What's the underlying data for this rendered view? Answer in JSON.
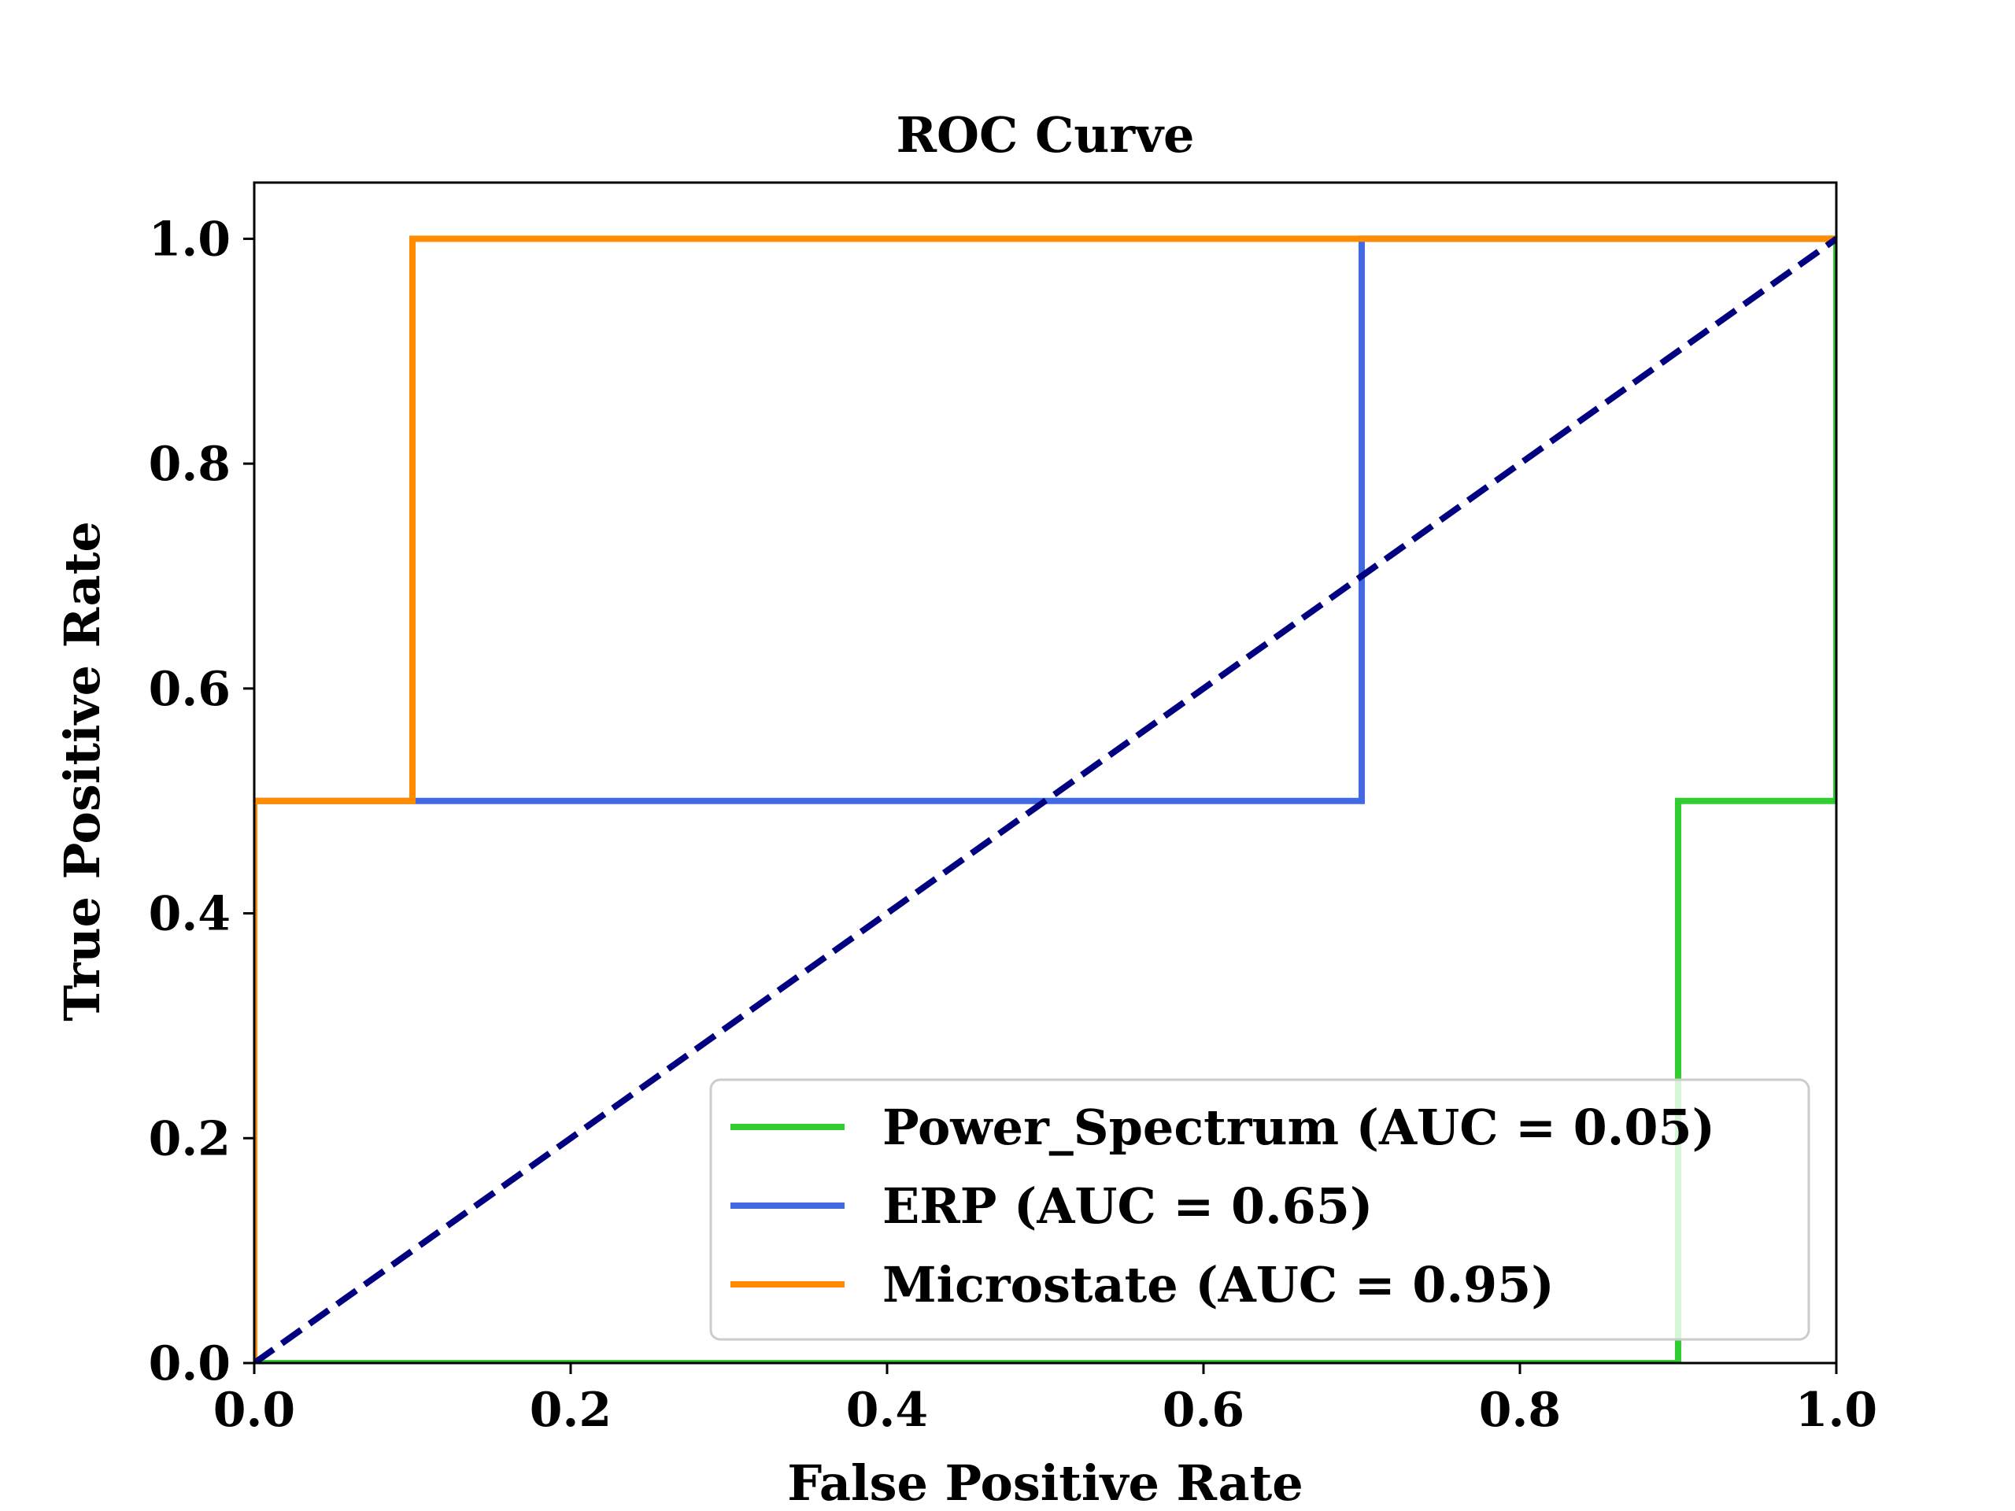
{
  "chart_data": {
    "type": "line",
    "title": "ROC Curve",
    "xlabel": "False Positive Rate",
    "ylabel": "True Positive Rate",
    "xlim": [
      0.0,
      1.0
    ],
    "ylim": [
      0.0,
      1.05
    ],
    "xticks": [
      "0.0",
      "0.2",
      "0.4",
      "0.6",
      "0.8",
      "1.0"
    ],
    "yticks": [
      "0.0",
      "0.2",
      "0.4",
      "0.6",
      "0.8",
      "1.0"
    ],
    "grid": false,
    "legend_position": "lower-right",
    "series": [
      {
        "name": "Power_Spectrum (AUC = 0.05)",
        "color": "#32cd32",
        "x": [
          0.0,
          0.9,
          0.9,
          1.0,
          1.0
        ],
        "y": [
          0.0,
          0.0,
          0.5,
          0.5,
          1.0
        ]
      },
      {
        "name": "ERP (AUC = 0.65)",
        "color": "#4169e1",
        "x": [
          0.0,
          0.0,
          0.7,
          0.7,
          1.0
        ],
        "y": [
          0.0,
          0.5,
          0.5,
          1.0,
          1.0
        ]
      },
      {
        "name": "Microstate (AUC = 0.95)",
        "color": "#ff8c00",
        "x": [
          0.0,
          0.0,
          0.1,
          0.1,
          1.0
        ],
        "y": [
          0.0,
          0.5,
          0.5,
          1.0,
          1.0
        ]
      }
    ],
    "reference_line": {
      "x": [
        0.0,
        1.0
      ],
      "y": [
        0.0,
        1.0
      ],
      "color": "#000080",
      "style": "dashed"
    }
  }
}
